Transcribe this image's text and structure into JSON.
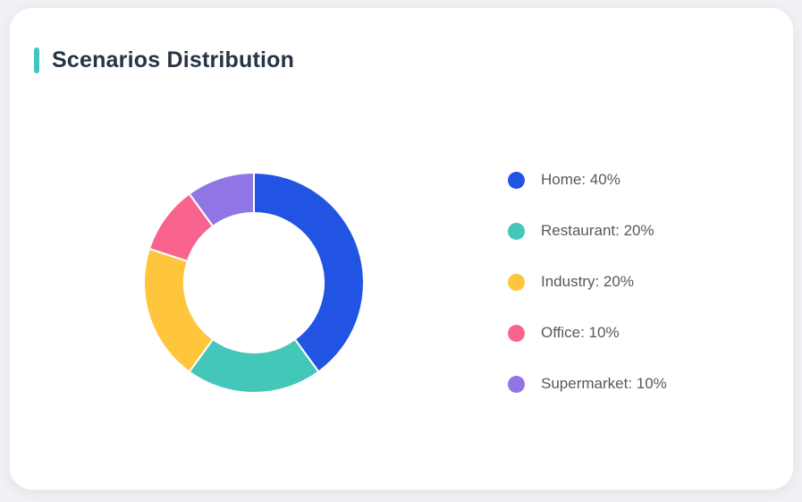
{
  "page": {
    "background": "#F0F1F4"
  },
  "card": {
    "title": "Scenarios Distribution",
    "accent_color": "#3FC6C3",
    "background": "#FFFFFF"
  },
  "legend": {
    "position": "right",
    "items": [
      {
        "text": "Home: 40%",
        "color": "#2254E3"
      },
      {
        "text": "Restaurant: 20%",
        "color": "#42C7B8"
      },
      {
        "text": "Industry: 20%",
        "color": "#FFC53D"
      },
      {
        "text": "Office: 10%",
        "color": "#F9648E"
      },
      {
        "text": "Supermarket: 10%",
        "color": "#9075E4"
      }
    ]
  },
  "chart_data": {
    "type": "pie",
    "subtype": "donut",
    "title": "Scenarios Distribution",
    "categories": [
      "Home",
      "Restaurant",
      "Industry",
      "Office",
      "Supermarket"
    ],
    "values": [
      40,
      20,
      20,
      10,
      10
    ],
    "unit": "%",
    "colors": [
      "#2254E3",
      "#42C7B8",
      "#FFC53D",
      "#F9648E",
      "#9075E4"
    ],
    "start_angle_deg": 0,
    "direction": "clockwise",
    "inner_radius_ratio": 0.634,
    "slice_gap_color": "#FFFFFF",
    "legend_position": "right"
  }
}
